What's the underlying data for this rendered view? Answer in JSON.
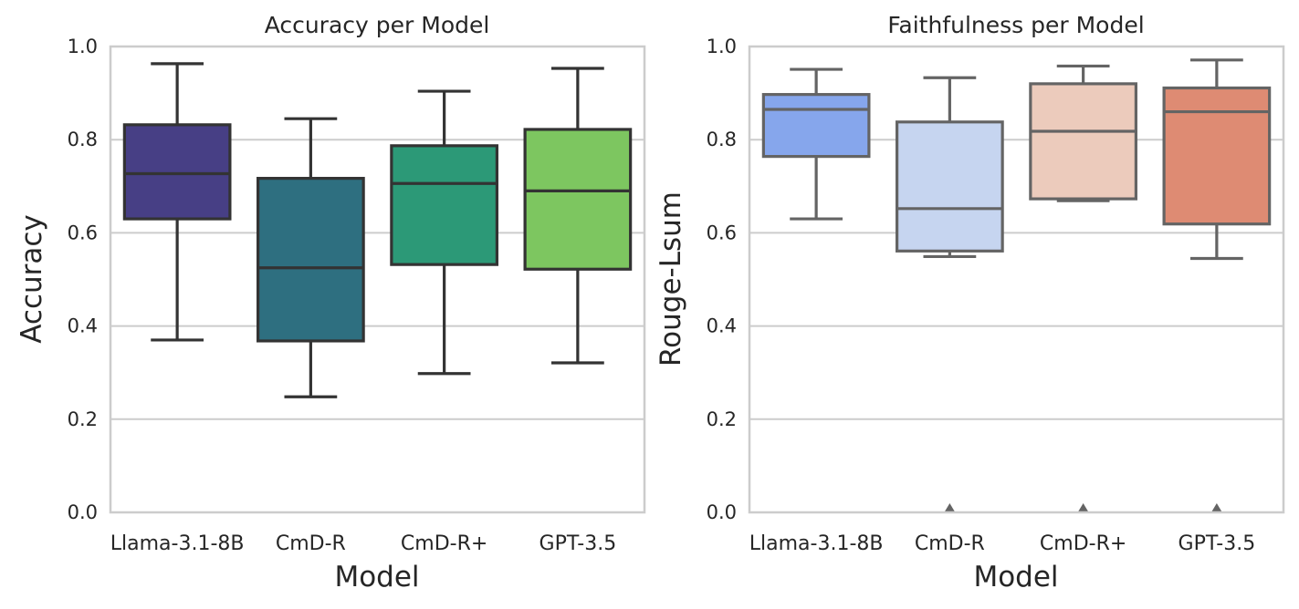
{
  "chart_data": [
    {
      "type": "box",
      "title": "Accuracy per Model",
      "xlabel": "Model",
      "ylabel": "Accuracy",
      "ylim": [
        0,
        1
      ],
      "yticks": [
        "0.0",
        "0.2",
        "0.4",
        "0.6",
        "0.8",
        "1.0"
      ],
      "grid": true,
      "line_color": "#333333",
      "categories": [
        "Llama-3.1-8B",
        "CmD-R",
        "CmD-R+",
        "GPT-3.5"
      ],
      "boxes": [
        {
          "name": "Llama-3.1-8B",
          "whisker_low": 0.37,
          "q1": 0.63,
          "median": 0.727,
          "q3": 0.832,
          "whisker_high": 0.963,
          "color": "#473f85",
          "outliers": []
        },
        {
          "name": "CmD-R",
          "whisker_low": 0.248,
          "q1": 0.368,
          "median": 0.525,
          "q3": 0.717,
          "whisker_high": 0.845,
          "color": "#2e6f80",
          "outliers": []
        },
        {
          "name": "CmD-R+",
          "whisker_low": 0.298,
          "q1": 0.532,
          "median": 0.706,
          "q3": 0.787,
          "whisker_high": 0.904,
          "color": "#2c9977",
          "outliers": []
        },
        {
          "name": "GPT-3.5",
          "whisker_low": 0.321,
          "q1": 0.522,
          "median": 0.69,
          "q3": 0.822,
          "whisker_high": 0.953,
          "color": "#7dc660",
          "outliers": []
        }
      ]
    },
    {
      "type": "box",
      "title": "Faithfulness per Model",
      "xlabel": "Model",
      "ylabel": "Rouge-Lsum",
      "ylim": [
        0,
        1
      ],
      "yticks": [
        "0.0",
        "0.2",
        "0.4",
        "0.6",
        "0.8",
        "1.0"
      ],
      "grid": true,
      "line_color": "#646464",
      "categories": [
        "Llama-3.1-8B",
        "CmD-R",
        "CmD-R+",
        "GPT-3.5"
      ],
      "boxes": [
        {
          "name": "Llama-3.1-8B",
          "whisker_low": 0.63,
          "q1": 0.764,
          "median": 0.865,
          "q3": 0.897,
          "whisker_high": 0.951,
          "color": "#86a6ec",
          "outliers": []
        },
        {
          "name": "CmD-R",
          "whisker_low": 0.549,
          "q1": 0.561,
          "median": 0.652,
          "q3": 0.838,
          "whisker_high": 0.933,
          "color": "#c6d5f0",
          "outliers": [
            0.0
          ]
        },
        {
          "name": "CmD-R+",
          "whisker_low": 0.669,
          "q1": 0.673,
          "median": 0.818,
          "q3": 0.92,
          "whisker_high": 0.958,
          "color": "#eccbbc",
          "outliers": [
            0.0
          ]
        },
        {
          "name": "GPT-3.5",
          "whisker_low": 0.545,
          "q1": 0.619,
          "median": 0.86,
          "q3": 0.911,
          "whisker_high": 0.971,
          "color": "#de8b73",
          "outliers": [
            0.0
          ]
        }
      ]
    }
  ]
}
